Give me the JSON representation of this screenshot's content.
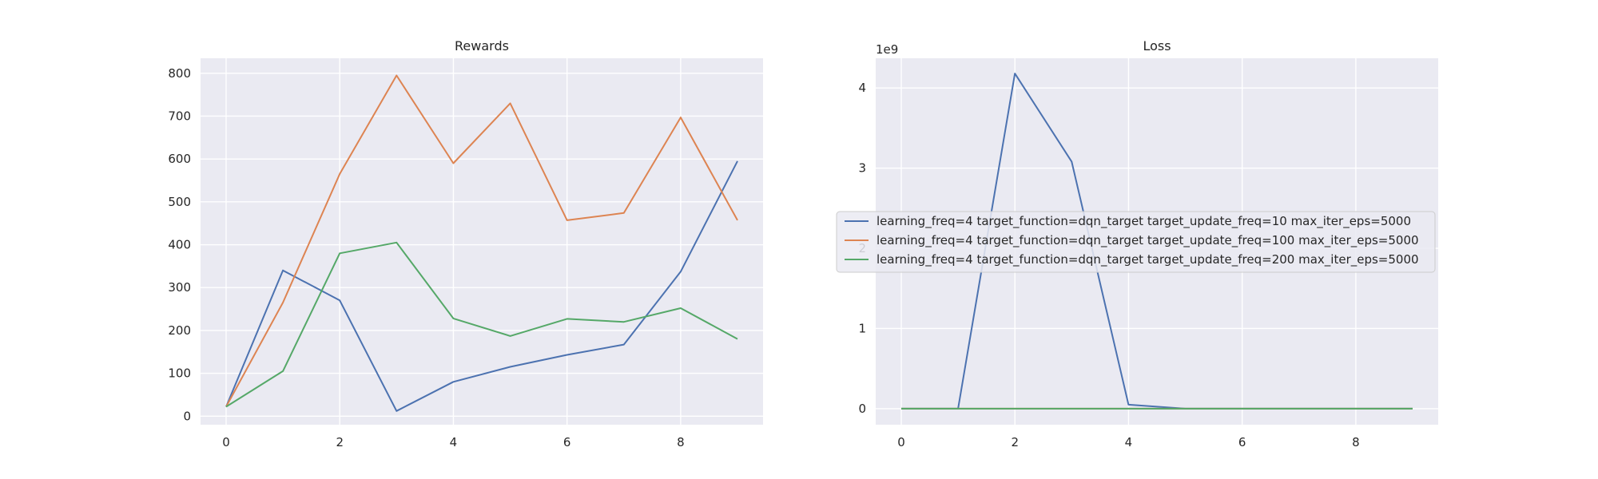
{
  "chart_data": [
    {
      "type": "line",
      "title": "Rewards",
      "xlabel": "",
      "ylabel": "",
      "xlim": [
        -0.45,
        9.45
      ],
      "ylim": [
        -20,
        835
      ],
      "xticks": [
        0,
        2,
        4,
        6,
        8
      ],
      "yticks": [
        0,
        100,
        200,
        300,
        400,
        500,
        600,
        700,
        800
      ],
      "x": [
        0,
        1,
        2,
        3,
        4,
        5,
        6,
        7,
        8,
        9
      ],
      "grid": true,
      "series": [
        {
          "color": "#4c72b0",
          "values": [
            22,
            340,
            270,
            12,
            80,
            115,
            143,
            167,
            337,
            595
          ]
        },
        {
          "color": "#dd8452",
          "values": [
            22,
            265,
            565,
            795,
            590,
            730,
            457,
            474,
            697,
            457
          ]
        },
        {
          "color": "#55a868",
          "values": [
            22,
            105,
            380,
            405,
            228,
            187,
            227,
            220,
            252,
            180
          ]
        }
      ]
    },
    {
      "type": "line",
      "title": "Loss",
      "xlabel": "",
      "ylabel": "",
      "y_offset_label": "1e9",
      "xlim": [
        -0.45,
        9.45
      ],
      "ylim": [
        -0.2,
        4.37
      ],
      "xticks": [
        0,
        2,
        4,
        6,
        8
      ],
      "yticks": [
        0,
        1,
        2,
        3,
        4
      ],
      "x": [
        0,
        1,
        2,
        3,
        4,
        5,
        6,
        7,
        8,
        9
      ],
      "grid": true,
      "legend": {
        "placement": "center-left",
        "entries": [
          "learning_freq=4 target_function=dqn_target target_update_freq=10 max_iter_eps=5000",
          "learning_freq=4 target_function=dqn_target target_update_freq=100 max_iter_eps=5000",
          "learning_freq=4 target_function=dqn_target target_update_freq=200 max_iter_eps=5000"
        ]
      },
      "series": [
        {
          "color": "#4c72b0",
          "values": [
            0,
            0,
            4.18,
            3.08,
            0.05,
            0,
            0,
            0,
            0,
            0
          ]
        },
        {
          "color": "#dd8452",
          "values": [
            0,
            0,
            0,
            0,
            0,
            0,
            0,
            0,
            0,
            0
          ]
        },
        {
          "color": "#55a868",
          "values": [
            0,
            0,
            0,
            0,
            0,
            0,
            0,
            0,
            0,
            0
          ]
        }
      ]
    }
  ]
}
